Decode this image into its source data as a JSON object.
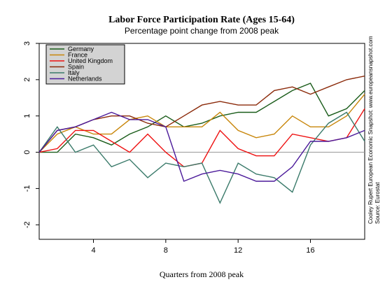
{
  "chart_data": {
    "type": "line",
    "title": "Labor Force Participation Rate (Ages 15-64)",
    "subtitle": "Percentage point change from 2008 peak",
    "xlabel": "Quarters from 2008 peak",
    "ylabel": "",
    "xlim": [
      1,
      19
    ],
    "ylim": [
      -2.4,
      3
    ],
    "xticks": [
      4,
      8,
      12,
      16
    ],
    "yticks": [
      -2,
      -1,
      0,
      1,
      2,
      3
    ],
    "legend_position": "top-left",
    "x": [
      1,
      2,
      3,
      4,
      5,
      6,
      7,
      8,
      9,
      10,
      11,
      12,
      13,
      14,
      15,
      16,
      17,
      18,
      19
    ],
    "series": [
      {
        "name": "Germany",
        "color": "#1a5c1a",
        "values": [
          0,
          0,
          0.5,
          0.4,
          0.2,
          0.5,
          0.7,
          1.0,
          0.7,
          0.8,
          1.0,
          1.1,
          1.1,
          1.4,
          1.7,
          1.9,
          1.0,
          1.2,
          1.7
        ]
      },
      {
        "name": "France",
        "color": "#c8860a",
        "values": [
          0,
          0.5,
          0.7,
          0.5,
          0.5,
          0.9,
          1.0,
          0.7,
          0.7,
          0.7,
          1.1,
          0.6,
          0.4,
          0.5,
          1.0,
          0.7,
          0.7,
          1.0,
          1.6
        ]
      },
      {
        "name": "United Kingdom",
        "color": "#ee1111",
        "values": [
          0,
          0.1,
          0.6,
          0.6,
          0.3,
          0.0,
          0.5,
          0.0,
          -0.4,
          -0.3,
          0.6,
          0.1,
          -0.1,
          -0.1,
          0.5,
          0.4,
          0.3,
          0.4,
          1.2
        ]
      },
      {
        "name": "Spain",
        "color": "#8b2a0a",
        "values": [
          0,
          0.6,
          0.7,
          0.9,
          1.0,
          1.0,
          0.8,
          0.7,
          1.0,
          1.3,
          1.4,
          1.3,
          1.3,
          1.7,
          1.8,
          1.6,
          1.8,
          2.0,
          2.1
        ]
      },
      {
        "name": "Italy",
        "color": "#3a7a6a",
        "values": [
          0,
          0.7,
          0.0,
          0.2,
          -0.4,
          -0.2,
          -0.7,
          -0.3,
          -0.4,
          -0.3,
          -1.4,
          -0.3,
          -0.6,
          -0.7,
          -1.1,
          0.2,
          0.8,
          1.1,
          0.3
        ]
      },
      {
        "name": "Netherlands",
        "color": "#4b1a9a",
        "values": [
          0,
          0.6,
          0.7,
          0.9,
          1.1,
          0.9,
          0.9,
          0.7,
          -0.8,
          -0.6,
          -0.5,
          -0.6,
          -0.8,
          -0.8,
          -0.4,
          0.3,
          0.3,
          0.4,
          0.6
        ]
      }
    ],
    "annotation_lines": [
      "Cooley Rupert European Economic Snapshot: www.europeansnapshot.com",
      "Source: Eurostat"
    ]
  }
}
